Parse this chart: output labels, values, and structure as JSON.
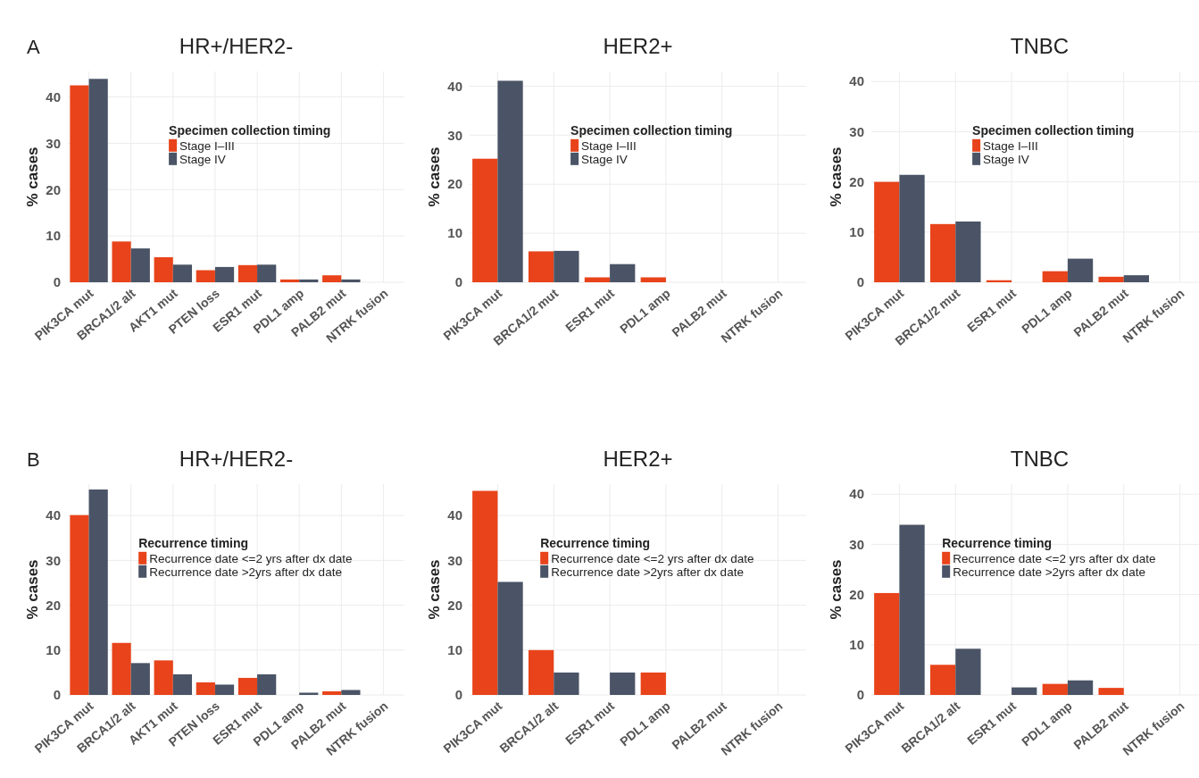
{
  "chart_data": [
    {
      "type": "bar",
      "title": "HR+/HER2-",
      "ylabel": "% cases",
      "legend_title": "Specimen collection timing",
      "annotations": [
        "A"
      ],
      "categories": [
        "PIK3CA mut",
        "BRCA1/2 alt",
        "AKT1 mut",
        "PTEN loss",
        "ESR1 mut",
        "PDL1 amp",
        "PALB2 mut",
        "NTRK fusion"
      ],
      "series": [
        {
          "name": "Stage I–III",
          "color": "#e8431a",
          "values": [
            42.5,
            8.8,
            5.4,
            2.6,
            3.7,
            0.6,
            1.5,
            0
          ]
        },
        {
          "name": "Stage IV",
          "color": "#4a5466",
          "values": [
            43.9,
            7.3,
            3.8,
            3.3,
            3.8,
            0.6,
            0.6,
            0
          ]
        }
      ],
      "ylim": [
        0,
        45.5
      ],
      "yticks": [
        0,
        10,
        20,
        30,
        40
      ],
      "grid": true,
      "legend": "top left"
    },
    {
      "type": "bar",
      "title": "HER2+",
      "ylabel": "% cases",
      "legend_title": "Specimen collection timing",
      "categories": [
        "PIK3CA mut",
        "BRCA1/2 mut",
        "ESR1 mut",
        "PDL1 amp",
        "PALB2 mut",
        "NTRK fusion"
      ],
      "series": [
        {
          "name": "Stage I–III",
          "color": "#e8431a",
          "values": [
            25.2,
            6.3,
            1.0,
            1.0,
            0,
            0
          ]
        },
        {
          "name": "Stage IV",
          "color": "#4a5466",
          "values": [
            41.1,
            6.4,
            3.7,
            0,
            0,
            0
          ]
        }
      ],
      "ylim": [
        0,
        43
      ],
      "yticks": [
        0,
        10,
        20,
        30,
        40
      ],
      "grid": true,
      "legend": "top left"
    },
    {
      "type": "bar",
      "title": "TNBC",
      "ylabel": "% cases",
      "legend_title": "Specimen collection timing",
      "categories": [
        "PIK3CA mut",
        "BRCA1/2 mut",
        "ESR1 mut",
        "PDL1 amp",
        "PALB2 mut",
        "NTRK fusion"
      ],
      "series": [
        {
          "name": "Stage I–III",
          "color": "#e8431a",
          "values": [
            20.0,
            11.6,
            0.4,
            2.2,
            1.1,
            0
          ]
        },
        {
          "name": "Stage IV",
          "color": "#4a5466",
          "values": [
            21.4,
            12.1,
            0,
            4.7,
            1.4,
            0
          ]
        }
      ],
      "ylim": [
        0,
        42
      ],
      "yticks": [
        0,
        10,
        20,
        30,
        40
      ],
      "grid": true,
      "legend": "top left"
    },
    {
      "type": "bar",
      "title": "HR+/HER2-",
      "ylabel": "% cases",
      "legend_title": "Recurrence timing",
      "annotations": [
        "B"
      ],
      "categories": [
        "PIK3CA mut",
        "BRCA1/2 alt",
        "AKT1 mut",
        "PTEN loss",
        "ESR1 mut",
        "PDL1 amp",
        "PALB2 mut",
        "NTRK fusion"
      ],
      "series": [
        {
          "name": "Recurrence date <=2 yrs after dx date",
          "color": "#e8431a",
          "values": [
            40.1,
            11.6,
            7.7,
            2.8,
            3.8,
            0,
            0.8,
            0
          ]
        },
        {
          "name": "Recurrence date >2yrs after dx date",
          "color": "#4a5466",
          "values": [
            45.8,
            7.1,
            4.6,
            2.3,
            4.6,
            0.5,
            1.1,
            0
          ]
        }
      ],
      "ylim": [
        0,
        47
      ],
      "yticks": [
        0,
        10,
        20,
        30,
        40
      ],
      "grid": true,
      "legend": "right"
    },
    {
      "type": "bar",
      "title": "HER2+",
      "ylabel": "% cases",
      "legend_title": "Recurrence timing",
      "categories": [
        "PIK3CA mut",
        "BRCA1/2 alt",
        "ESR1 mut",
        "PDL1 amp",
        "PALB2 mut",
        "NTRK fusion"
      ],
      "series": [
        {
          "name": "Recurrence date <=2 yrs after dx date",
          "color": "#e8431a",
          "values": [
            45.5,
            10,
            0,
            5,
            0,
            0
          ]
        },
        {
          "name": "Recurrence date >2yrs after dx date",
          "color": "#4a5466",
          "values": [
            25.2,
            5,
            5,
            0,
            0,
            0
          ]
        }
      ],
      "ylim": [
        0,
        47
      ],
      "yticks": [
        0,
        10,
        20,
        30,
        40
      ],
      "grid": true,
      "legend": "right"
    },
    {
      "type": "bar",
      "title": "TNBC",
      "ylabel": "% cases",
      "legend_title": "Recurrence timing",
      "categories": [
        "PIK3CA mut",
        "BRCA1/2 alt",
        "ESR1 mut",
        "PDL1 amp",
        "PALB2 mut",
        "NTRK fusion"
      ],
      "series": [
        {
          "name": "Recurrence date <=2 yrs after dx date",
          "color": "#e8431a",
          "values": [
            20.3,
            6.0,
            0,
            2.2,
            1.4,
            0
          ]
        },
        {
          "name": "Recurrence date >2yrs after dx date",
          "color": "#4a5466",
          "values": [
            33.9,
            9.2,
            1.5,
            2.9,
            0,
            0
          ]
        }
      ],
      "ylim": [
        0,
        42
      ],
      "yticks": [
        0,
        10,
        20,
        30,
        40
      ],
      "grid": true,
      "legend": "right"
    }
  ]
}
